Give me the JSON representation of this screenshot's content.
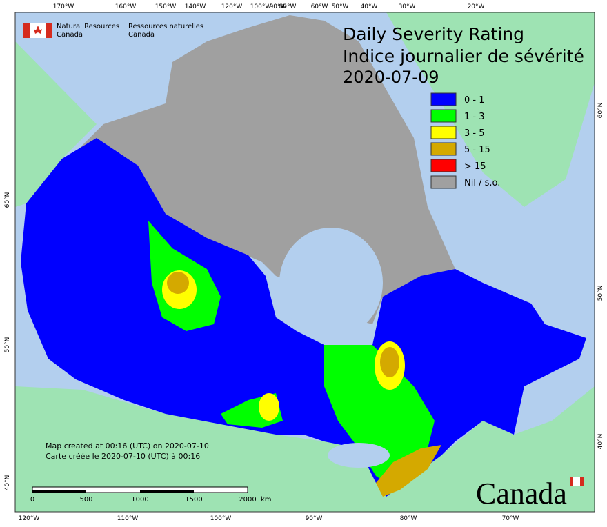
{
  "header": {
    "agency_en": "Natural Resources\nCanada",
    "agency_fr": "Ressources naturelles\nCanada",
    "title_en": "Daily Severity Rating",
    "title_fr": "Indice journalier de sévérité",
    "date": "2020-07-09"
  },
  "legend": [
    {
      "label": "0 - 1",
      "color": "#0000ff"
    },
    {
      "label": "1 - 3",
      "color": "#00ff00"
    },
    {
      "label": "3 - 5",
      "color": "#ffff00"
    },
    {
      "label": "5 - 15",
      "color": "#d4a900"
    },
    {
      "label": "> 15",
      "color": "#ff0000"
    },
    {
      "label": "Nil / s.o.",
      "color": "#a0a0a0"
    }
  ],
  "footer": {
    "created_en": "Map created at 00:16 (UTC) on 2020-07-10",
    "created_fr": "Carte créée le 2020-07-10 (UTC) à 00:16",
    "wordmark": "Canada"
  },
  "scale_bar": {
    "labels": [
      "0",
      "500",
      "1000",
      "1500",
      "2000"
    ],
    "unit": "km"
  },
  "graticule": {
    "top": [
      "170°W",
      "160°W",
      "150°W",
      "140°W",
      "120°W",
      "100°W",
      "90°W",
      "80°W",
      "60°W",
      "50°W",
      "40°W",
      "30°W",
      "20°W"
    ],
    "bottom": [
      "120°W",
      "110°W",
      "100°W",
      "90°W",
      "80°W",
      "70°W"
    ],
    "left": [
      "60°N",
      "50°N",
      "40°N"
    ],
    "right": [
      "60°N",
      "50°N",
      "40°N"
    ]
  }
}
